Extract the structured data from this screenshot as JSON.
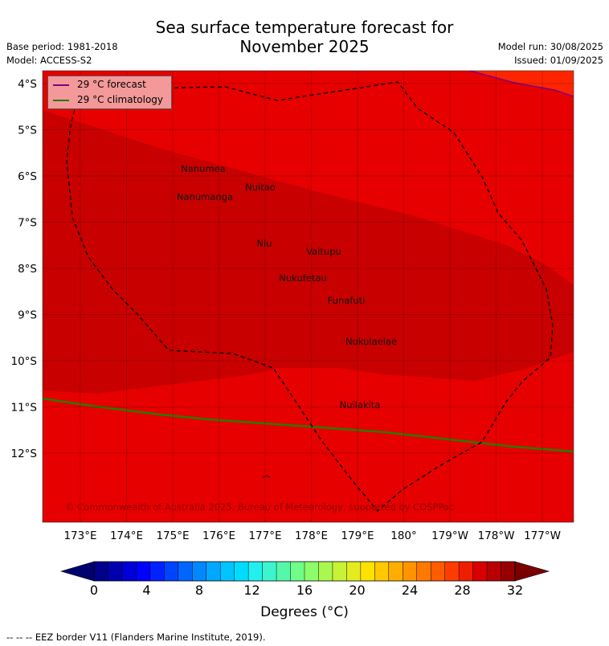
{
  "header": {
    "title_line1": "Sea surface temperature forecast for",
    "title_line2": "November 2025",
    "base_period": "Base period: 1981-2018",
    "model": "Model: ACCESS-S2",
    "model_run": "Model run: 30/08/2025",
    "issued": "Issued: 01/09/2025"
  },
  "legend": {
    "forecast_label": "29 °C  forecast",
    "forecast_color": "#800080",
    "climatology_label": "29 °C  climatology",
    "climatology_color": "#2a7a00"
  },
  "map": {
    "lat_labels": [
      "4°S",
      "5°S",
      "6°S",
      "7°S",
      "8°S",
      "9°S",
      "10°S",
      "11°S",
      "12°S"
    ],
    "lon_labels": [
      "173°E",
      "174°E",
      "175°E",
      "176°E",
      "177°E",
      "178°E",
      "179°E",
      "180°",
      "179°W",
      "178°W",
      "177°W"
    ],
    "islands": [
      {
        "name": "Nanumea"
      },
      {
        "name": "Nuitao"
      },
      {
        "name": "Nanumanga"
      },
      {
        "name": "Niu"
      },
      {
        "name": "Vaitupu"
      },
      {
        "name": "Nukufetau"
      },
      {
        "name": "Funafuti"
      },
      {
        "name": "Nukulaelae"
      },
      {
        "name": "Nuilakita"
      }
    ],
    "copyright": "© Commonwealth of Australia 2025, Bureau of Meteorology, supported by COSPPac",
    "colors": {
      "warm": "#e60000",
      "warmer": "#c80000",
      "hot": "#ff2400"
    }
  },
  "colorbar": {
    "tick_labels": [
      "0",
      "4",
      "8",
      "12",
      "16",
      "20",
      "24",
      "28",
      "32"
    ],
    "label": "Degrees (°C)"
  },
  "footnote": "--  --  -- EEZ border V11 (Flanders Marine Institute, 2019)."
}
